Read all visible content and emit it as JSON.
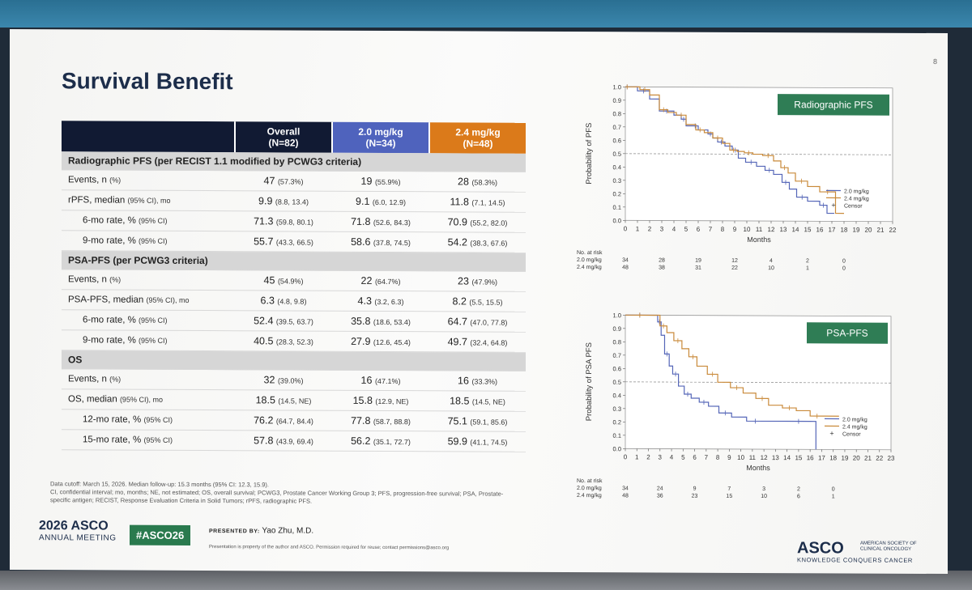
{
  "page_number": "8",
  "title": "Survival Benefit",
  "table": {
    "headers": [
      {
        "label": "Overall",
        "sub": "(N=82)"
      },
      {
        "label": "2.0 mg/kg",
        "sub": "(N=34)"
      },
      {
        "label": "2.4 mg/kg",
        "sub": "(N=48)"
      }
    ],
    "sections": [
      {
        "title": "Radiographic PFS (per RECIST 1.1 modified by PCWG3 criteria)",
        "rows": [
          {
            "label": "Events, n",
            "label_ci": "(%)",
            "indent": false,
            "cells": [
              [
                "47",
                "(57.3%)"
              ],
              [
                "19",
                "(55.9%)"
              ],
              [
                "28",
                "(58.3%)"
              ]
            ]
          },
          {
            "label": "rPFS, median",
            "label_ci": "(95% CI), mo",
            "indent": false,
            "cells": [
              [
                "9.9",
                "(8.8, 13.4)"
              ],
              [
                "9.1",
                "(6.0, 12.9)"
              ],
              [
                "11.8",
                "(7.1, 14.5)"
              ]
            ]
          },
          {
            "label": "6-mo rate, %",
            "label_ci": "(95% CI)",
            "indent": true,
            "cells": [
              [
                "71.3",
                "(59.8, 80.1)"
              ],
              [
                "71.8",
                "(52.6, 84.3)"
              ],
              [
                "70.9",
                "(55.2, 82.0)"
              ]
            ]
          },
          {
            "label": "9-mo rate, %",
            "label_ci": "(95% CI)",
            "indent": true,
            "cells": [
              [
                "55.7",
                "(43.3, 66.5)"
              ],
              [
                "58.6",
                "(37.8, 74.5)"
              ],
              [
                "54.2",
                "(38.3, 67.6)"
              ]
            ]
          }
        ]
      },
      {
        "title": "PSA-PFS (per PCWG3 criteria)",
        "rows": [
          {
            "label": "Events, n",
            "label_ci": "(%)",
            "indent": false,
            "cells": [
              [
                "45",
                "(54.9%)"
              ],
              [
                "22",
                "(64.7%)"
              ],
              [
                "23",
                "(47.9%)"
              ]
            ]
          },
          {
            "label": "PSA-PFS, median",
            "label_ci": "(95% CI), mo",
            "indent": false,
            "cells": [
              [
                "6.3",
                "(4.8, 9.8)"
              ],
              [
                "4.3",
                "(3.2, 6.3)"
              ],
              [
                "8.2",
                "(5.5, 15.5)"
              ]
            ]
          },
          {
            "label": "6-mo rate, %",
            "label_ci": "(95% CI)",
            "indent": true,
            "cells": [
              [
                "52.4",
                "(39.5, 63.7)"
              ],
              [
                "35.8",
                "(18.6, 53.4)"
              ],
              [
                "64.7",
                "(47.0, 77.8)"
              ]
            ]
          },
          {
            "label": "9-mo rate, %",
            "label_ci": "(95% CI)",
            "indent": true,
            "cells": [
              [
                "40.5",
                "(28.3, 52.3)"
              ],
              [
                "27.9",
                "(12.6, 45.4)"
              ],
              [
                "49.7",
                "(32.4, 64.8)"
              ]
            ]
          }
        ]
      },
      {
        "title": "OS",
        "rows": [
          {
            "label": "Events, n",
            "label_ci": "(%)",
            "indent": false,
            "cells": [
              [
                "32",
                "(39.0%)"
              ],
              [
                "16",
                "(47.1%)"
              ],
              [
                "16",
                "(33.3%)"
              ]
            ]
          },
          {
            "label": "OS, median",
            "label_ci": "(95% CI), mo",
            "indent": false,
            "cells": [
              [
                "18.5",
                "(14.5, NE)"
              ],
              [
                "15.8",
                "(12.9, NE)"
              ],
              [
                "18.5",
                "(14.5, NE)"
              ]
            ]
          },
          {
            "label": "12-mo rate, %",
            "label_ci": "(95% CI)",
            "indent": true,
            "cells": [
              [
                "76.2",
                "(64.7, 84.4)"
              ],
              [
                "77.8",
                "(58.7, 88.8)"
              ],
              [
                "75.1",
                "(59.1, 85.6)"
              ]
            ]
          },
          {
            "label": "15-mo rate, %",
            "label_ci": "(95% CI)",
            "indent": true,
            "cells": [
              [
                "57.8",
                "(43.9, 69.4)"
              ],
              [
                "56.2",
                "(35.1, 72.7)"
              ],
              [
                "59.9",
                "(41.1, 74.5)"
              ]
            ]
          }
        ]
      }
    ]
  },
  "footnote": {
    "line1": "Data cutoff: March 15, 2026. Median follow-up: 15.3 months (95% CI: 12.3, 15.9).",
    "line2": "CI, confidential interval; mo, months; NE, not estimated; OS, overall survival; PCWG3, Prostate Cancer Working Group 3; PFS, progression-free survival; PSA, Prostate-specific antigen; RECIST, Response Evaluation Criteria in Solid Tumors; rPFS, radiographic PFS."
  },
  "footer": {
    "asco_year": "2026 ASCO",
    "asco_meeting": "ANNUAL MEETING",
    "hashtag": "#ASCO26",
    "presented_by": "PRESENTED BY:",
    "presenter": "Yao Zhu, M.D.",
    "legal": "Presentation is property of the author and ASCO. Permission required for reuse; contact permissions@asco.org",
    "asco_logo": "ASCO",
    "society": "AMERICAN SOCIETY OF CLINICAL ONCOLOGY",
    "tagline": "KNOWLEDGE CONQUERS CANCER"
  },
  "colors": {
    "dose_2_0": "#5566b8",
    "dose_2_4": "#c98a3a",
    "badge_green": "#2f7d55"
  },
  "chart_data": [
    {
      "type": "line",
      "badge": "Radiographic PFS",
      "ylabel": "Probability of PFS",
      "xlabel": "Months",
      "ylim": [
        0,
        1.0
      ],
      "xlim": [
        0,
        22
      ],
      "yticks": [
        "0.0",
        "0.1",
        "0.2",
        "0.3",
        "0.4",
        "0.5",
        "0.6",
        "0.7",
        "0.8",
        "0.9",
        "1.0"
      ],
      "xticks": [
        "0",
        "1",
        "2",
        "3",
        "4",
        "5",
        "6",
        "7",
        "8",
        "9",
        "10",
        "11",
        "12",
        "13",
        "14",
        "15",
        "16",
        "17",
        "18",
        "19",
        "20",
        "21",
        "22"
      ],
      "legend": [
        "2.0 mg/kg",
        "2.4 mg/kg",
        "Censor"
      ],
      "series": [
        {
          "name": "2.0 mg/kg",
          "color": "#5566b8",
          "x": [
            0,
            0.3,
            1,
            2,
            2.8,
            4,
            4.6,
            5,
            5.5,
            6,
            6.8,
            7.2,
            7.6,
            8.2,
            8.8,
            9.3,
            9.9,
            10.8,
            11.5,
            12.2,
            12.9,
            13.5,
            14.1,
            15,
            16,
            16.6,
            17.2
          ],
          "y": [
            1.0,
            1.0,
            0.97,
            0.91,
            0.82,
            0.79,
            0.76,
            0.71,
            0.71,
            0.68,
            0.65,
            0.62,
            0.59,
            0.56,
            0.53,
            0.47,
            0.44,
            0.41,
            0.38,
            0.35,
            0.29,
            0.24,
            0.18,
            0.15,
            0.12,
            0.06,
            0.06
          ]
        },
        {
          "name": "2.4 mg/kg",
          "color": "#c98a3a",
          "x": [
            0,
            0.3,
            1.2,
            2,
            2.8,
            3.5,
            4.2,
            5,
            5.8,
            6.5,
            7.2,
            8,
            8.6,
            9.2,
            9.8,
            10.5,
            11.3,
            12.2,
            12.8,
            13.4,
            14,
            15,
            16,
            17.3,
            18
          ],
          "y": [
            1.0,
            1.0,
            0.98,
            0.94,
            0.83,
            0.81,
            0.79,
            0.72,
            0.68,
            0.66,
            0.62,
            0.58,
            0.53,
            0.52,
            0.51,
            0.5,
            0.49,
            0.45,
            0.4,
            0.36,
            0.3,
            0.26,
            0.22,
            0.06,
            0.06
          ]
        }
      ],
      "at_risk": {
        "title": "No. at risk",
        "times": [
          0,
          3,
          6,
          9,
          12,
          15,
          18
        ],
        "rows": [
          {
            "label": "2.0 mg/kg",
            "values": [
              "34",
              "28",
              "19",
              "12",
              "4",
              "2",
              "0"
            ]
          },
          {
            "label": "2.4 mg/kg",
            "values": [
              "48",
              "38",
              "31",
              "22",
              "10",
              "1",
              "0"
            ]
          }
        ]
      }
    },
    {
      "type": "line",
      "badge": "PSA-PFS",
      "ylabel": "Probability of PSA PFS",
      "xlabel": "Months",
      "ylim": [
        0,
        1.0
      ],
      "xlim": [
        0,
        23
      ],
      "yticks": [
        "0.0",
        "0.1",
        "0.2",
        "0.3",
        "0.4",
        "0.5",
        "0.6",
        "0.7",
        "0.8",
        "0.9",
        "1.0"
      ],
      "xticks": [
        "0",
        "1",
        "2",
        "3",
        "4",
        "5",
        "6",
        "7",
        "8",
        "9",
        "10",
        "11",
        "12",
        "13",
        "14",
        "15",
        "16",
        "17",
        "18",
        "19",
        "20",
        "21",
        "22",
        "23"
      ],
      "legend": [
        "2.0 mg/kg",
        "2.4 mg/kg",
        "Censor"
      ],
      "series": [
        {
          "name": "2.0 mg/kg",
          "color": "#5566b8",
          "x": [
            0,
            2.5,
            2.8,
            3.1,
            3.4,
            3.8,
            4.1,
            4.6,
            5.1,
            5.7,
            6.4,
            7.2,
            8.1,
            9.2,
            10.5,
            12,
            14,
            16,
            16.5
          ],
          "y": [
            1.0,
            1.0,
            0.95,
            0.85,
            0.71,
            0.62,
            0.56,
            0.47,
            0.41,
            0.38,
            0.35,
            0.32,
            0.27,
            0.24,
            0.21,
            0.21,
            0.21,
            0.21,
            0.0
          ]
        },
        {
          "name": "2.4 mg/kg",
          "color": "#c98a3a",
          "x": [
            0,
            2.5,
            3.0,
            3.6,
            4.2,
            4.9,
            5.5,
            6.2,
            7.1,
            8.0,
            9.1,
            10.2,
            11.3,
            12.4,
            13.6,
            14.8,
            16,
            17.2,
            18.5
          ],
          "y": [
            1.0,
            1.0,
            0.92,
            0.87,
            0.81,
            0.75,
            0.69,
            0.62,
            0.56,
            0.5,
            0.46,
            0.42,
            0.38,
            0.33,
            0.31,
            0.29,
            0.25,
            0.25,
            0.25
          ]
        }
      ],
      "at_risk": {
        "title": "No. at risk",
        "times": [
          0,
          3,
          6,
          9,
          12,
          15,
          18
        ],
        "rows": [
          {
            "label": "2.0 mg/kg",
            "values": [
              "34",
              "24",
              "9",
              "7",
              "3",
              "2",
              "0"
            ]
          },
          {
            "label": "2.4 mg/kg",
            "values": [
              "48",
              "36",
              "23",
              "15",
              "10",
              "6",
              "1"
            ]
          }
        ]
      }
    }
  ]
}
